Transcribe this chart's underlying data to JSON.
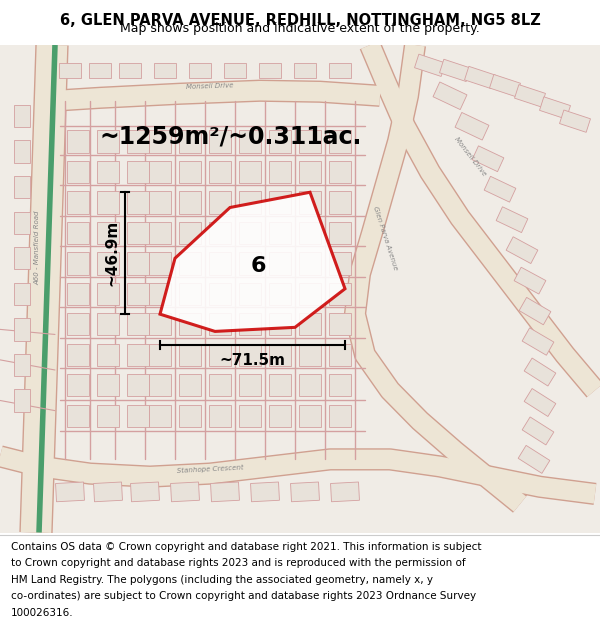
{
  "title": "6, GLEN PARVA AVENUE, REDHILL, NOTTINGHAM, NG5 8LZ",
  "subtitle": "Map shows position and indicative extent of the property.",
  "area_text": "~1259m²/~0.311ac.",
  "width_label": "~71.5m",
  "height_label": "~46.9m",
  "number_label": "6",
  "footer_lines": [
    "Contains OS data © Crown copyright and database right 2021. This information is subject",
    "to Crown copyright and database rights 2023 and is reproduced with the permission of",
    "HM Land Registry. The polygons (including the associated geometry, namely x, y",
    "co-ordinates) are subject to Crown copyright and database rights 2023 Ordnance Survey",
    "100026316."
  ],
  "map_bg": "#f0ece6",
  "building_fill": "#e8e2da",
  "building_outline": "#d4a0a0",
  "road_fill": "#ede5d5",
  "road_outline": "#d0a090",
  "green_color": "#4a9e6b",
  "plot_color": "#cc0000",
  "title_fontsize": 10.5,
  "subtitle_fontsize": 9,
  "area_fontsize": 17,
  "number_fontsize": 16,
  "dim_fontsize": 11,
  "footer_fontsize": 7.5,
  "road_label_color": "#888888",
  "road_label_fontsize": 5
}
